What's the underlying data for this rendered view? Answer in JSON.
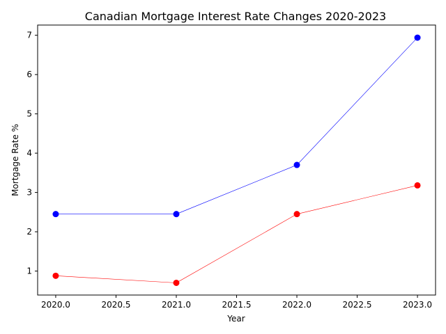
{
  "chart_data": {
    "type": "line",
    "title": "Canadian Mortgage Interest Rate Changes 2020-2023",
    "xlabel": "Year",
    "ylabel": "Mortgage Rate %",
    "x": [
      2020,
      2021,
      2022,
      2023
    ],
    "xlim": [
      1999.85,
      2023.15
    ],
    "ylim": [
      0.39,
      7.26
    ],
    "x_ticks": [
      "2020.0",
      "2020.5",
      "2021.0",
      "2021.5",
      "2022.0",
      "2022.5",
      "2023.0"
    ],
    "x_tick_values": [
      2020.0,
      2020.5,
      2021.0,
      2021.5,
      2022.0,
      2022.5,
      2023.0
    ],
    "y_ticks": [
      "1",
      "2",
      "3",
      "4",
      "5",
      "6",
      "7"
    ],
    "y_tick_values": [
      1,
      2,
      3,
      4,
      5,
      6,
      7
    ],
    "grid": false,
    "series": [
      {
        "color": "#0000ff",
        "values": [
          2.45,
          2.45,
          3.7,
          6.94
        ]
      },
      {
        "color": "#ff0000",
        "values": [
          0.88,
          0.7,
          2.45,
          3.18
        ]
      }
    ]
  }
}
